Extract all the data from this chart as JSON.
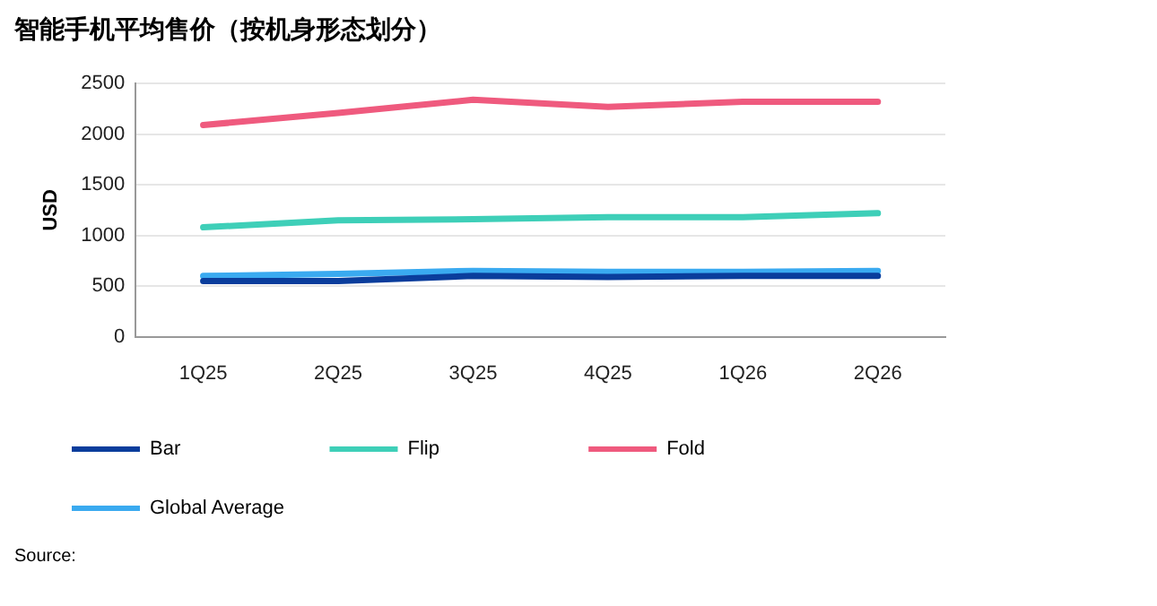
{
  "chart_data": {
    "type": "line",
    "title": "智能手机平均售价（按机身形态划分）",
    "ylabel": "USD",
    "categories": [
      "1Q25",
      "2Q25",
      "3Q25",
      "4Q25",
      "1Q26",
      "2Q26"
    ],
    "series": [
      {
        "name": "Bar",
        "color": "#0a3d9c",
        "values": [
          550,
          550,
          600,
          590,
          600,
          600
        ]
      },
      {
        "name": "Flip",
        "color": "#3ecfb8",
        "values": [
          1080,
          1150,
          1160,
          1180,
          1180,
          1220
        ]
      },
      {
        "name": "Fold",
        "color": "#ef5a7e",
        "values": [
          2090,
          2210,
          2340,
          2270,
          2320,
          2320
        ]
      },
      {
        "name": "Global Average",
        "color": "#3aaaf0",
        "values": [
          600,
          620,
          650,
          640,
          640,
          650
        ]
      }
    ],
    "ylim": [
      0,
      2500
    ],
    "yticks": [
      0,
      500,
      1000,
      1500,
      2000,
      2500
    ],
    "grid": "y",
    "legend": "bottom",
    "marker": "none",
    "line_style": "solid",
    "annotations": [
      "Source:"
    ]
  }
}
